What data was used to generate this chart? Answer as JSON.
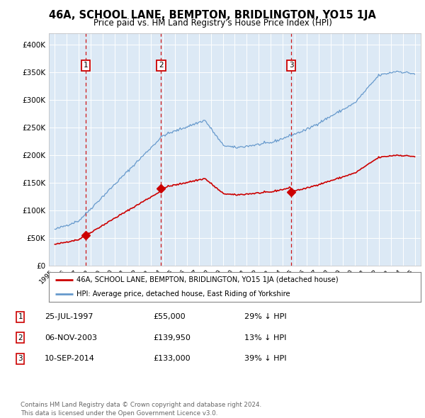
{
  "title": "46A, SCHOOL LANE, BEMPTON, BRIDLINGTON, YO15 1JA",
  "subtitle": "Price paid vs. HM Land Registry's House Price Index (HPI)",
  "background_color": "#dce9f5",
  "plot_bg_color": "#dce9f5",
  "sale_color": "#cc0000",
  "hpi_color": "#6699cc",
  "vline_color": "#cc0000",
  "transactions": [
    {
      "date": 1997.56,
      "price": 55000,
      "label": "1"
    },
    {
      "date": 2003.85,
      "price": 139950,
      "label": "2"
    },
    {
      "date": 2014.7,
      "price": 133000,
      "label": "3"
    }
  ],
  "legend_entries": [
    "46A, SCHOOL LANE, BEMPTON, BRIDLINGTON, YO15 1JA (detached house)",
    "HPI: Average price, detached house, East Riding of Yorkshire"
  ],
  "table_rows": [
    {
      "num": "1",
      "date": "25-JUL-1997",
      "price": "£55,000",
      "hpi": "29% ↓ HPI"
    },
    {
      "num": "2",
      "date": "06-NOV-2003",
      "price": "£139,950",
      "hpi": "13% ↓ HPI"
    },
    {
      "num": "3",
      "date": "10-SEP-2014",
      "price": "£133,000",
      "hpi": "39% ↓ HPI"
    }
  ],
  "footer": "Contains HM Land Registry data © Crown copyright and database right 2024.\nThis data is licensed under the Open Government Licence v3.0.",
  "ylim": [
    0,
    420000
  ],
  "xlim_start": 1994.5,
  "xlim_end": 2025.5,
  "yticks": [
    0,
    50000,
    100000,
    150000,
    200000,
    250000,
    300000,
    350000,
    400000
  ],
  "ytick_labels": [
    "£0",
    "£50K",
    "£100K",
    "£150K",
    "£200K",
    "£250K",
    "£300K",
    "£350K",
    "£400K"
  ],
  "xtick_years": [
    1995,
    1996,
    1997,
    1998,
    1999,
    2000,
    2001,
    2002,
    2003,
    2004,
    2005,
    2006,
    2007,
    2008,
    2009,
    2010,
    2011,
    2012,
    2013,
    2014,
    2015,
    2016,
    2017,
    2018,
    2019,
    2020,
    2021,
    2022,
    2023,
    2024,
    2025
  ]
}
